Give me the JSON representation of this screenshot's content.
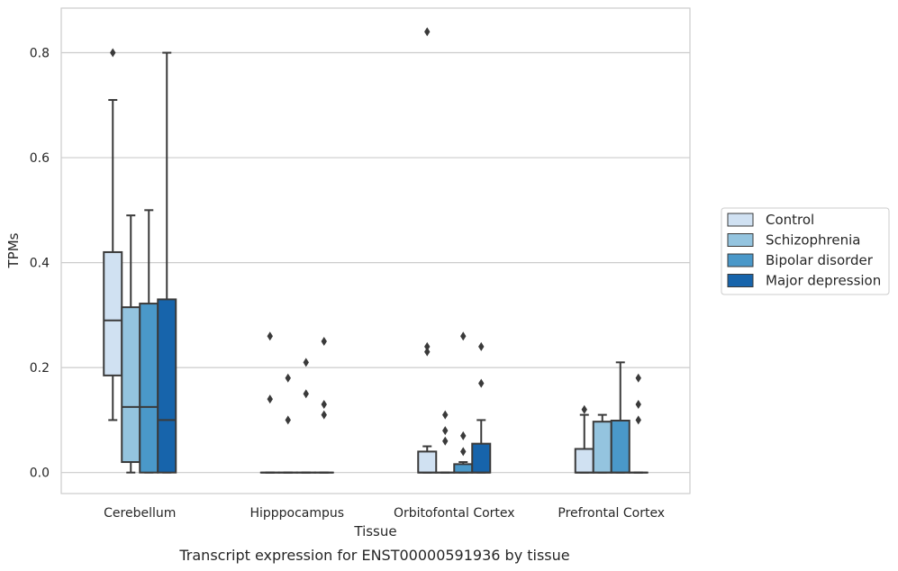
{
  "chart_data": {
    "type": "box",
    "title": "",
    "caption": "Transcript expression for ENST00000591936 by tissue",
    "xlabel": "Tissue",
    "ylabel": "TPMs",
    "ylim": [
      -0.04,
      0.885
    ],
    "yticks": [
      0.0,
      0.2,
      0.4,
      0.6,
      0.8
    ],
    "ytick_labels": [
      "0.0",
      "0.2",
      "0.4",
      "0.6",
      "0.8"
    ],
    "grid": "horizontal",
    "legend_position": "right",
    "categories": [
      "Cerebellum",
      "Hipppocampus",
      "Orbitofontal Cortex",
      "Prefrontal Cortex"
    ],
    "series": [
      {
        "name": "Control",
        "color": "#d0e1f2",
        "boxes": [
          {
            "whislo": 0.1,
            "q1": 0.185,
            "med": 0.29,
            "q3": 0.42,
            "whishi": 0.71,
            "fliers": [
              0.8
            ]
          },
          {
            "whislo": 0.0,
            "q1": 0.0,
            "med": 0.0,
            "q3": 0.0,
            "whishi": 0.0,
            "fliers": [
              0.26,
              0.14
            ]
          },
          {
            "whislo": 0.0,
            "q1": 0.0,
            "med": 0.0,
            "q3": 0.04,
            "whishi": 0.05,
            "fliers": [
              0.84,
              0.24,
              0.23
            ]
          },
          {
            "whislo": 0.0,
            "q1": 0.0,
            "med": 0.0,
            "q3": 0.045,
            "whishi": 0.11,
            "fliers": [
              0.12
            ]
          }
        ]
      },
      {
        "name": "Schizophrenia",
        "color": "#94c4df",
        "boxes": [
          {
            "whislo": 0.0,
            "q1": 0.02,
            "med": 0.125,
            "q3": 0.315,
            "whishi": 0.49,
            "fliers": []
          },
          {
            "whislo": 0.0,
            "q1": 0.0,
            "med": 0.0,
            "q3": 0.0,
            "whishi": 0.0,
            "fliers": [
              0.18,
              0.1
            ]
          },
          {
            "whislo": 0.0,
            "q1": 0.0,
            "med": 0.0,
            "q3": 0.0,
            "whishi": 0.0,
            "fliers": [
              0.11,
              0.08,
              0.06
            ]
          },
          {
            "whislo": 0.0,
            "q1": 0.0,
            "med": 0.0,
            "q3": 0.097,
            "whishi": 0.11,
            "fliers": []
          }
        ]
      },
      {
        "name": "Bipolar disorder",
        "color": "#4a98c9",
        "boxes": [
          {
            "whislo": 0.0,
            "q1": 0.0,
            "med": 0.125,
            "q3": 0.322,
            "whishi": 0.5,
            "fliers": []
          },
          {
            "whislo": 0.0,
            "q1": 0.0,
            "med": 0.0,
            "q3": 0.0,
            "whishi": 0.0,
            "fliers": [
              0.21,
              0.15
            ]
          },
          {
            "whislo": 0.0,
            "q1": 0.0,
            "med": 0.0,
            "q3": 0.016,
            "whishi": 0.02,
            "fliers": [
              0.26,
              0.07,
              0.04
            ]
          },
          {
            "whislo": 0.0,
            "q1": 0.0,
            "med": 0.0,
            "q3": 0.099,
            "whishi": 0.21,
            "fliers": []
          }
        ]
      },
      {
        "name": "Major depression",
        "color": "#1764ab",
        "boxes": [
          {
            "whislo": 0.0,
            "q1": 0.0,
            "med": 0.1,
            "q3": 0.33,
            "whishi": 0.8,
            "fliers": []
          },
          {
            "whislo": 0.0,
            "q1": 0.0,
            "med": 0.0,
            "q3": 0.0,
            "whishi": 0.0,
            "fliers": [
              0.25,
              0.13,
              0.11
            ]
          },
          {
            "whislo": 0.0,
            "q1": 0.0,
            "med": 0.0,
            "q3": 0.055,
            "whishi": 0.1,
            "fliers": [
              0.24,
              0.17
            ]
          },
          {
            "whislo": 0.0,
            "q1": 0.0,
            "med": 0.0,
            "q3": 0.0,
            "whishi": 0.0,
            "fliers": [
              0.18,
              0.13,
              0.1
            ]
          }
        ]
      }
    ]
  }
}
